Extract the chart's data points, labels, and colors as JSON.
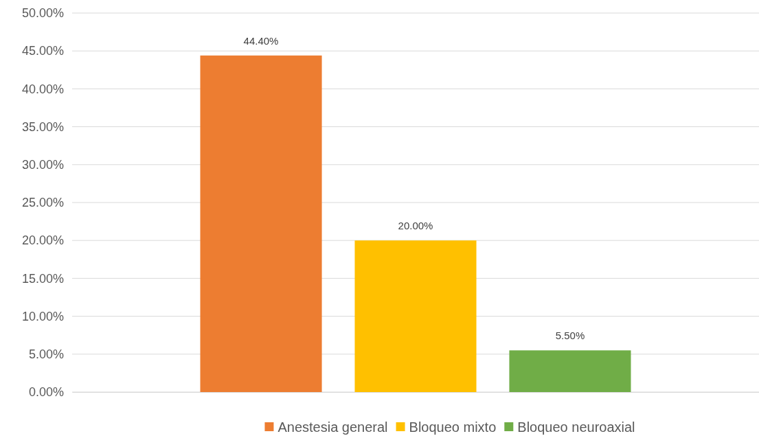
{
  "chart_data": {
    "type": "bar",
    "categories": [
      null
    ],
    "series": [
      {
        "name": "Anestesia general",
        "color": "#ed7d31",
        "values": [
          44.4
        ],
        "value_labels": [
          "44.40%"
        ]
      },
      {
        "name": "Bloqueo mixto",
        "color": "#ffc000",
        "values": [
          20.0
        ],
        "value_labels": [
          "20.00%"
        ]
      },
      {
        "name": "Bloqueo neuroaxial",
        "color": "#70ad47",
        "values": [
          5.5
        ],
        "value_labels": [
          "5.50%"
        ]
      }
    ],
    "ylim": [
      0,
      50
    ],
    "yticks": [
      {
        "value": 0,
        "label": "0.00%"
      },
      {
        "value": 5,
        "label": "5.00%"
      },
      {
        "value": 10,
        "label": "10.00%"
      },
      {
        "value": 15,
        "label": "15.00%"
      },
      {
        "value": 20,
        "label": "20.00%"
      },
      {
        "value": 25,
        "label": "25.00%"
      },
      {
        "value": 30,
        "label": "30.00%"
      },
      {
        "value": 35,
        "label": "35.00%"
      },
      {
        "value": 40,
        "label": "40.00%"
      },
      {
        "value": 45,
        "label": "45.00%"
      },
      {
        "value": 50,
        "label": "50.00%"
      }
    ],
    "grid": "y",
    "legend": "bottom"
  }
}
